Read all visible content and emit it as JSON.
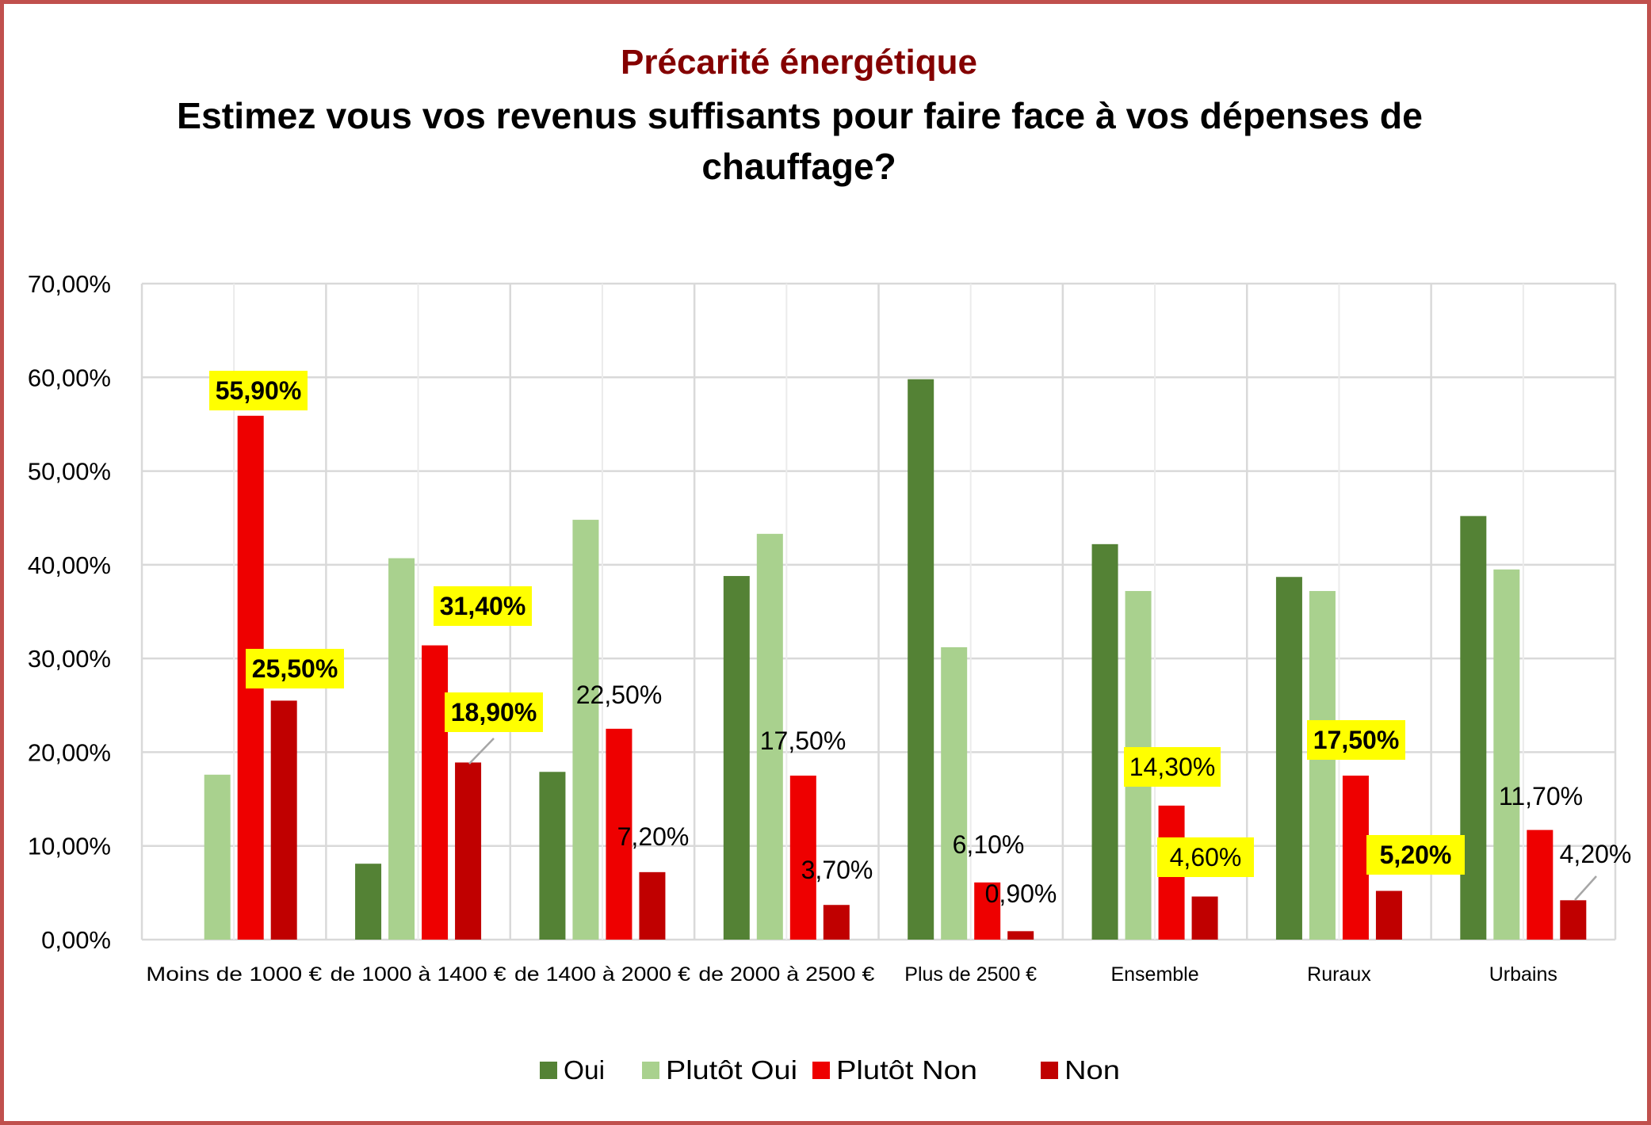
{
  "chart_data": {
    "type": "bar",
    "title": "Précarité énergétique",
    "subtitle_line1": "Estimez vous vos revenus suffisants pour faire face à vos dépenses de",
    "subtitle_line2": "chauffage?",
    "xlabel": "",
    "ylabel": "",
    "ylim": [
      0,
      70
    ],
    "y_ticks": [
      "0,00%",
      "10,00%",
      "20,00%",
      "30,00%",
      "40,00%",
      "50,00%",
      "60,00%",
      "70,00%"
    ],
    "y_tick_values": [
      0,
      10,
      20,
      30,
      40,
      50,
      60,
      70
    ],
    "grid": true,
    "legend_position": "bottom",
    "categories": [
      "Moins de 1000 €",
      "de 1000 à 1400 €",
      "de 1400 à 2000 €",
      "de 2000 à 2500 €",
      "Plus de 2500 €",
      "Ensemble",
      "Ruraux",
      "Urbains"
    ],
    "series": [
      {
        "name": "Oui",
        "color": "#548235",
        "values": [
          0,
          8.1,
          17.9,
          38.8,
          59.8,
          42.2,
          38.7,
          45.2
        ],
        "labels": [
          null,
          null,
          null,
          null,
          null,
          null,
          null,
          null
        ],
        "highlight": [
          false,
          false,
          false,
          false,
          false,
          false,
          false,
          false
        ]
      },
      {
        "name": "Plutôt Oui",
        "color": "#A9D18E",
        "values": [
          17.6,
          40.7,
          44.8,
          43.3,
          31.2,
          37.2,
          37.2,
          39.5
        ],
        "labels": [
          null,
          null,
          null,
          null,
          null,
          null,
          null,
          null
        ],
        "highlight": [
          false,
          false,
          false,
          false,
          false,
          false,
          false,
          false
        ]
      },
      {
        "name": "Plutôt Non",
        "color": "#EE0000",
        "values": [
          55.9,
          31.4,
          22.5,
          17.5,
          6.1,
          14.3,
          17.5,
          11.7
        ],
        "labels": [
          "55,90%",
          "31,40%",
          "22,50%",
          "17,50%",
          "6,10%",
          "14,30%",
          "17,50%",
          "11,70%"
        ],
        "highlight": [
          true,
          true,
          false,
          false,
          false,
          true,
          true,
          false
        ]
      },
      {
        "name": "Non",
        "color": "#C00000",
        "values": [
          25.5,
          18.9,
          7.2,
          3.7,
          0.9,
          4.6,
          5.2,
          4.2
        ],
        "labels": [
          "25,50%",
          "18,90%",
          "7,20%",
          "3,70%",
          "0,90%",
          "4,60%",
          "5,20%",
          "4,20%"
        ],
        "highlight": [
          true,
          true,
          false,
          false,
          false,
          true,
          true,
          false
        ]
      }
    ]
  },
  "colors": {
    "title": "#840000",
    "frame_border": "#C0504D",
    "gridline": "#D9D9D9",
    "label_highlight": "#FFFF00"
  }
}
